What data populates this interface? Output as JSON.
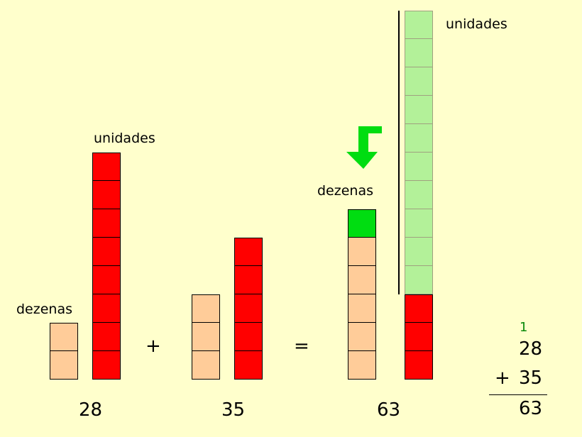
{
  "labels": {
    "dezenas": "dezenas",
    "unidades": "unidades"
  },
  "operators": {
    "plus": "+",
    "equals": "="
  },
  "numbers": {
    "first": "28",
    "second": "35",
    "result": "63"
  },
  "column_sum": {
    "carry": "1",
    "top": "28",
    "bottom": "35",
    "sign": "+",
    "result": "63"
  },
  "groups": [
    {
      "id": "first",
      "tens": 2,
      "units": 8
    },
    {
      "id": "second",
      "tens": 3,
      "units": 5
    },
    {
      "id": "result",
      "tens": 5,
      "carried_ten": 1,
      "units": 3,
      "regrouped_units": 10
    }
  ],
  "colors": {
    "background": "#ffffcc",
    "tens_block": "#ffcc99",
    "unit_block": "#ff0000",
    "carried_ten": "#00dd11",
    "regrouped_units": "#b3f199",
    "regrouped_border": "#a0a080",
    "arrow": "#00dd11",
    "carry_digit": "#0a8a0a"
  },
  "icons": {
    "regroup_arrow": "bent-arrow-down-icon"
  }
}
